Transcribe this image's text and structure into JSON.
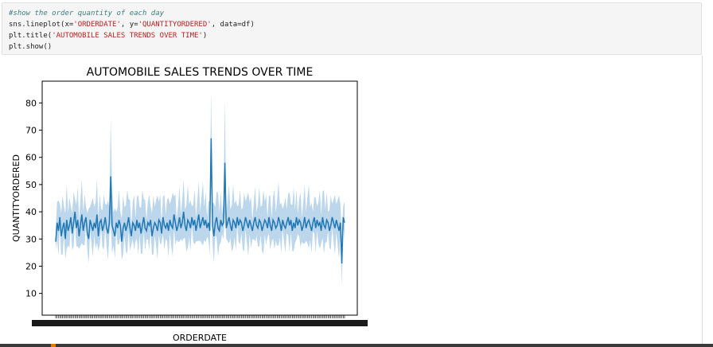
{
  "code_cell": {
    "lines": [
      {
        "kind": "comment",
        "text": "#show the order quantity of each day"
      },
      {
        "kind": "code",
        "parts": [
          "sns.lineplot(x=",
          "'ORDERDATE'",
          ", y=",
          "'QUANTITYORDERED'",
          ", data=df)"
        ]
      },
      {
        "kind": "code",
        "parts": [
          "plt.title(",
          "'AUTOMOBILE SALES TRENDS OVER TIME'",
          ")"
        ]
      },
      {
        "kind": "code",
        "parts": [
          "plt.show()"
        ]
      }
    ]
  },
  "chart_data": {
    "type": "line",
    "title": "AUTOMOBILE SALES TRENDS OVER TIME",
    "xlabel": "ORDERDATE",
    "ylabel": "QUANTITYORDERED",
    "ylim": [
      2,
      88
    ],
    "yticks": [
      10,
      20,
      30,
      40,
      50,
      60,
      70,
      80
    ],
    "x_tick_labels_overlapping": true,
    "confidence_band": true,
    "colors": {
      "line": "#1f77b4",
      "band": "#a6c8e4"
    },
    "series": [
      {
        "values": [
          29,
          36,
          33,
          38,
          31,
          34,
          36,
          30,
          37,
          33,
          35,
          38,
          32,
          36,
          40,
          34,
          37,
          31,
          35,
          39,
          33,
          36,
          38,
          32,
          30,
          37,
          35,
          33,
          36,
          34,
          39,
          31,
          36,
          37,
          33,
          35,
          38,
          34,
          32,
          36,
          53,
          35,
          33,
          31,
          36,
          34,
          37,
          35,
          29,
          34,
          36,
          33,
          35,
          38,
          34,
          31,
          36,
          35,
          33,
          37,
          34,
          36,
          32,
          35,
          38,
          34,
          33,
          36,
          35,
          37,
          31,
          34,
          36,
          35,
          33,
          37,
          36,
          32,
          38,
          35,
          34,
          36,
          33,
          37,
          35,
          34,
          39,
          36,
          33,
          35,
          38,
          34,
          36,
          40,
          35,
          33,
          37,
          36,
          34,
          38,
          35,
          37,
          33,
          36,
          39,
          34,
          36,
          38,
          35,
          37,
          34,
          36,
          33,
          67,
          35,
          31,
          36,
          38,
          34,
          33,
          37,
          35,
          36,
          58,
          34,
          36,
          38,
          35,
          33,
          37,
          36,
          34,
          38,
          35,
          37,
          36,
          33,
          35,
          38,
          36,
          34,
          37,
          35,
          33,
          36,
          38,
          35,
          34,
          37,
          36,
          33,
          35,
          37,
          36,
          34,
          38,
          35,
          33,
          37,
          36,
          34,
          35,
          38,
          36,
          33,
          37,
          35,
          34,
          36,
          38,
          35,
          37,
          33,
          36,
          34,
          38,
          35,
          37,
          36,
          33,
          35,
          38,
          34,
          36,
          37,
          35,
          33,
          36,
          38,
          34,
          37,
          35,
          36,
          33,
          38,
          35,
          34,
          37,
          36,
          33,
          35,
          38,
          36,
          34,
          37,
          35,
          33,
          36,
          21,
          38,
          36
        ],
        "band_half_width_note": "approx"
      }
    ]
  }
}
